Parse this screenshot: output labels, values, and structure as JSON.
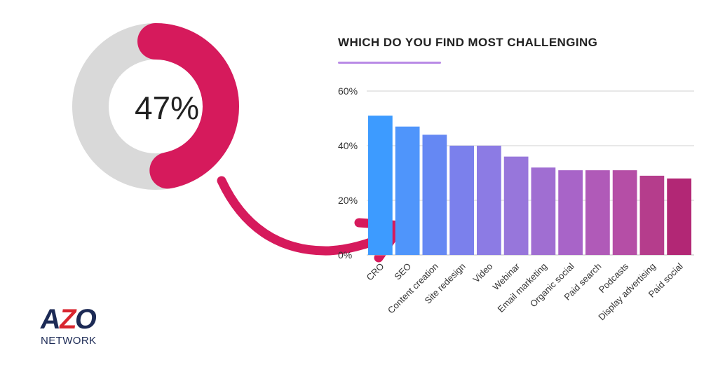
{
  "donut": {
    "value": 47,
    "label": "47%",
    "fill_color": "#d61a5c",
    "track_color": "#d9d9d9"
  },
  "arrow": {
    "color": "#d61a5c"
  },
  "chart_data": {
    "type": "bar",
    "title": "WHICH DO YOU FIND MOST CHALLENGING",
    "categories": [
      "CRO",
      "SEO",
      "Content creation",
      "Site redesign",
      "Video",
      "Webinar",
      "Email marketing",
      "Organic social",
      "Paid search",
      "Podcasts",
      "Display advertising",
      "Paid social"
    ],
    "values": [
      51,
      47,
      44,
      40,
      40,
      36,
      32,
      31,
      31,
      31,
      29,
      28
    ],
    "ylim": [
      0,
      60
    ],
    "yticks": [
      0,
      20,
      40,
      60
    ],
    "ytick_labels": [
      "0%",
      "20%",
      "40%",
      "60%"
    ],
    "xlabel": "",
    "ylabel": "",
    "grid": true,
    "bar_colors": [
      "#3d9bff",
      "#4f95fb",
      "#6588f3",
      "#7b80ec",
      "#8c7be4",
      "#9776db",
      "#a06ed2",
      "#a864c8",
      "#b05ab8",
      "#b54ea6",
      "#b53d8c",
      "#b22775"
    ]
  },
  "logo": {
    "main_a": "A",
    "main_z": "Z",
    "main_o": "O",
    "sub": "NETWORK"
  }
}
